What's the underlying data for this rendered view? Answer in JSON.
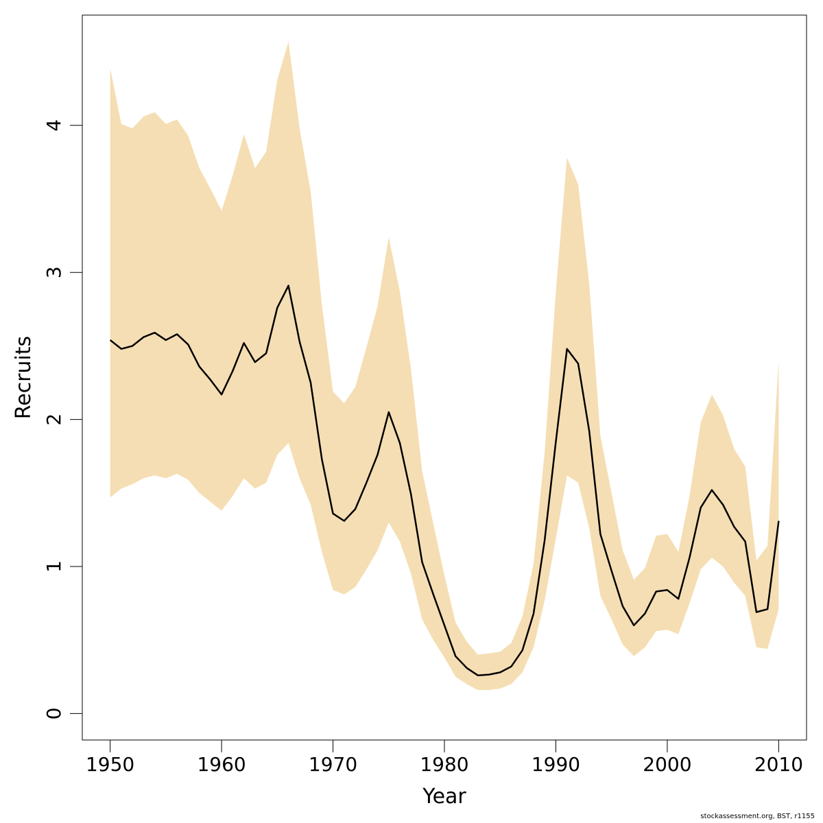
{
  "chart_data": {
    "type": "line",
    "title": "",
    "xlabel": "Year",
    "ylabel": "Recruits",
    "xlim": [
      1947.5,
      2012.5
    ],
    "ylim": [
      -0.18,
      4.75
    ],
    "x_ticks": [
      1950,
      1960,
      1970,
      1980,
      1990,
      2000,
      2010
    ],
    "x_tick_labels": [
      "1950",
      "1960",
      "1970",
      "1980",
      "1990",
      "2000",
      "2010"
    ],
    "y_ticks": [
      0,
      1,
      2,
      3,
      4
    ],
    "y_tick_labels": [
      "0",
      "1",
      "2",
      "3",
      "4"
    ],
    "grid": false,
    "colors": {
      "band": "#f5deb3",
      "line": "#000000",
      "axis": "#000000"
    },
    "series": [
      {
        "x": [
          1950,
          1951,
          1952,
          1953,
          1954,
          1955,
          1956,
          1957,
          1958,
          1959,
          1960,
          1961,
          1962,
          1963,
          1964,
          1965,
          1966,
          1967,
          1968,
          1969,
          1970,
          1971,
          1972,
          1973,
          1974,
          1975,
          1976,
          1977,
          1978,
          1979,
          1980,
          1981,
          1982,
          1983,
          1984,
          1985,
          1986,
          1987,
          1988,
          1989,
          1990,
          1991,
          1992,
          1993,
          1994,
          1995,
          1996,
          1997,
          1998,
          1999,
          2000,
          2001,
          2002,
          2003,
          2004,
          2005,
          2006,
          2007,
          2008,
          2009,
          2010
        ],
        "values": [
          2.54,
          2.48,
          2.5,
          2.56,
          2.59,
          2.54,
          2.58,
          2.51,
          2.36,
          2.27,
          2.17,
          2.33,
          2.52,
          2.39,
          2.45,
          2.76,
          2.91,
          2.53,
          2.25,
          1.73,
          1.36,
          1.31,
          1.39,
          1.57,
          1.76,
          2.05,
          1.84,
          1.49,
          1.03,
          0.81,
          0.6,
          0.39,
          0.31,
          0.26,
          0.265,
          0.28,
          0.32,
          0.43,
          0.68,
          1.18,
          1.85,
          2.48,
          2.38,
          1.92,
          1.22,
          0.97,
          0.73,
          0.6,
          0.68,
          0.83,
          0.84,
          0.78,
          1.06,
          1.4,
          1.52,
          1.42,
          1.27,
          1.17,
          0.69,
          0.71,
          1.31
        ],
        "lower": [
          1.47,
          1.53,
          1.56,
          1.6,
          1.62,
          1.6,
          1.63,
          1.59,
          1.5,
          1.44,
          1.38,
          1.48,
          1.6,
          1.53,
          1.57,
          1.76,
          1.84,
          1.6,
          1.42,
          1.1,
          0.84,
          0.81,
          0.86,
          0.98,
          1.11,
          1.3,
          1.17,
          0.95,
          0.64,
          0.5,
          0.38,
          0.25,
          0.2,
          0.16,
          0.16,
          0.17,
          0.2,
          0.28,
          0.45,
          0.77,
          1.19,
          1.62,
          1.57,
          1.26,
          0.8,
          0.64,
          0.47,
          0.39,
          0.45,
          0.56,
          0.57,
          0.54,
          0.75,
          0.98,
          1.06,
          1.0,
          0.89,
          0.8,
          0.45,
          0.44,
          0.71
        ],
        "upper": [
          4.39,
          4.01,
          3.98,
          4.06,
          4.09,
          4.01,
          4.04,
          3.93,
          3.71,
          3.57,
          3.42,
          3.66,
          3.94,
          3.71,
          3.82,
          4.31,
          4.57,
          3.98,
          3.55,
          2.78,
          2.19,
          2.11,
          2.22,
          2.49,
          2.77,
          3.24,
          2.87,
          2.34,
          1.65,
          1.29,
          0.94,
          0.62,
          0.49,
          0.4,
          0.41,
          0.42,
          0.48,
          0.66,
          1.02,
          1.78,
          2.87,
          3.78,
          3.6,
          2.92,
          1.89,
          1.5,
          1.11,
          0.91,
          0.99,
          1.21,
          1.22,
          1.1,
          1.48,
          1.98,
          2.17,
          2.03,
          1.8,
          1.68,
          1.04,
          1.14,
          2.4
        ]
      }
    ]
  },
  "footer": {
    "credit": "stockassessment.org, BST, r1155"
  }
}
